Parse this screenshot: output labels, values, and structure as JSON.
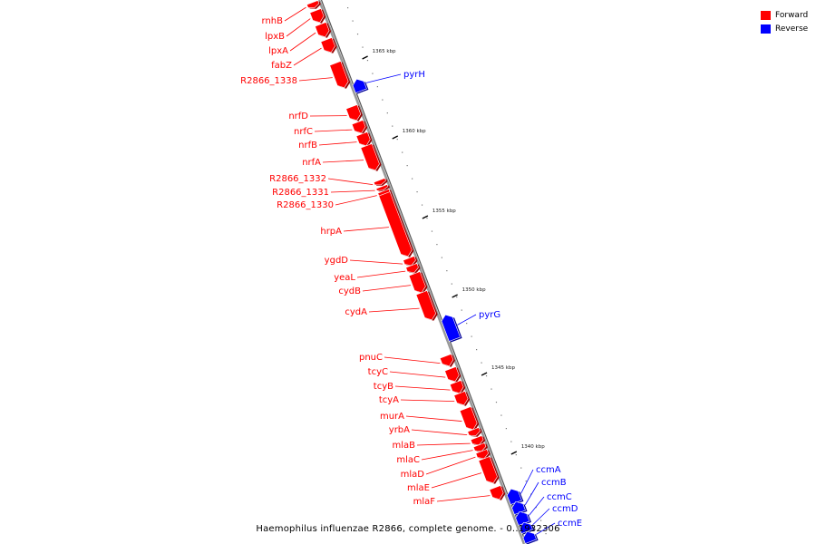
{
  "caption": "Haemophilus influenzae R2866, complete genome. - 0..1932306",
  "legend": {
    "items": [
      {
        "label": "Forward",
        "color": "#ff0000"
      },
      {
        "label": "Reverse",
        "color": "#0000ff"
      }
    ]
  },
  "colors": {
    "forward": "#ff0000",
    "reverse": "#0000ff",
    "backbone": "#999999"
  },
  "ticks": [
    {
      "label": "1365 kbp",
      "pos": 1365
    },
    {
      "label": "1360 kbp",
      "pos": 1360
    },
    {
      "label": "1355 kbp",
      "pos": 1355
    },
    {
      "label": "1350 kbp",
      "pos": 1350
    },
    {
      "label": "1345 kbp",
      "pos": 1345
    },
    {
      "label": "1340 kbp",
      "pos": 1340
    }
  ],
  "genes": [
    {
      "name": "rnhB",
      "strand": "forward"
    },
    {
      "name": "lpxB",
      "strand": "forward"
    },
    {
      "name": "lpxA",
      "strand": "forward"
    },
    {
      "name": "fabZ",
      "strand": "forward"
    },
    {
      "name": "R2866_1338",
      "strand": "forward"
    },
    {
      "name": "pyrH",
      "strand": "reverse"
    },
    {
      "name": "nrfD",
      "strand": "forward"
    },
    {
      "name": "nrfC",
      "strand": "forward"
    },
    {
      "name": "nrfB",
      "strand": "forward"
    },
    {
      "name": "nrfA",
      "strand": "forward"
    },
    {
      "name": "R2866_1332",
      "strand": "forward"
    },
    {
      "name": "R2866_1331",
      "strand": "forward"
    },
    {
      "name": "R2866_1330",
      "strand": "forward"
    },
    {
      "name": "hrpA",
      "strand": "forward"
    },
    {
      "name": "ygdD",
      "strand": "forward"
    },
    {
      "name": "yeaL",
      "strand": "forward"
    },
    {
      "name": "cydB",
      "strand": "forward"
    },
    {
      "name": "cydA",
      "strand": "forward"
    },
    {
      "name": "pyrG",
      "strand": "reverse"
    },
    {
      "name": "pnuC",
      "strand": "forward"
    },
    {
      "name": "tcyC",
      "strand": "forward"
    },
    {
      "name": "tcyB",
      "strand": "forward"
    },
    {
      "name": "tcyA",
      "strand": "forward"
    },
    {
      "name": "murA",
      "strand": "forward"
    },
    {
      "name": "yrbA",
      "strand": "forward"
    },
    {
      "name": "mlaB",
      "strand": "forward"
    },
    {
      "name": "mlaC",
      "strand": "forward"
    },
    {
      "name": "mlaD",
      "strand": "forward"
    },
    {
      "name": "mlaE",
      "strand": "forward"
    },
    {
      "name": "mlaF",
      "strand": "forward"
    },
    {
      "name": "ccmA",
      "strand": "reverse"
    },
    {
      "name": "ccmB",
      "strand": "reverse"
    },
    {
      "name": "ccmC",
      "strand": "reverse"
    },
    {
      "name": "ccmD",
      "strand": "reverse"
    },
    {
      "name": "ccmE",
      "strand": "reverse"
    }
  ]
}
